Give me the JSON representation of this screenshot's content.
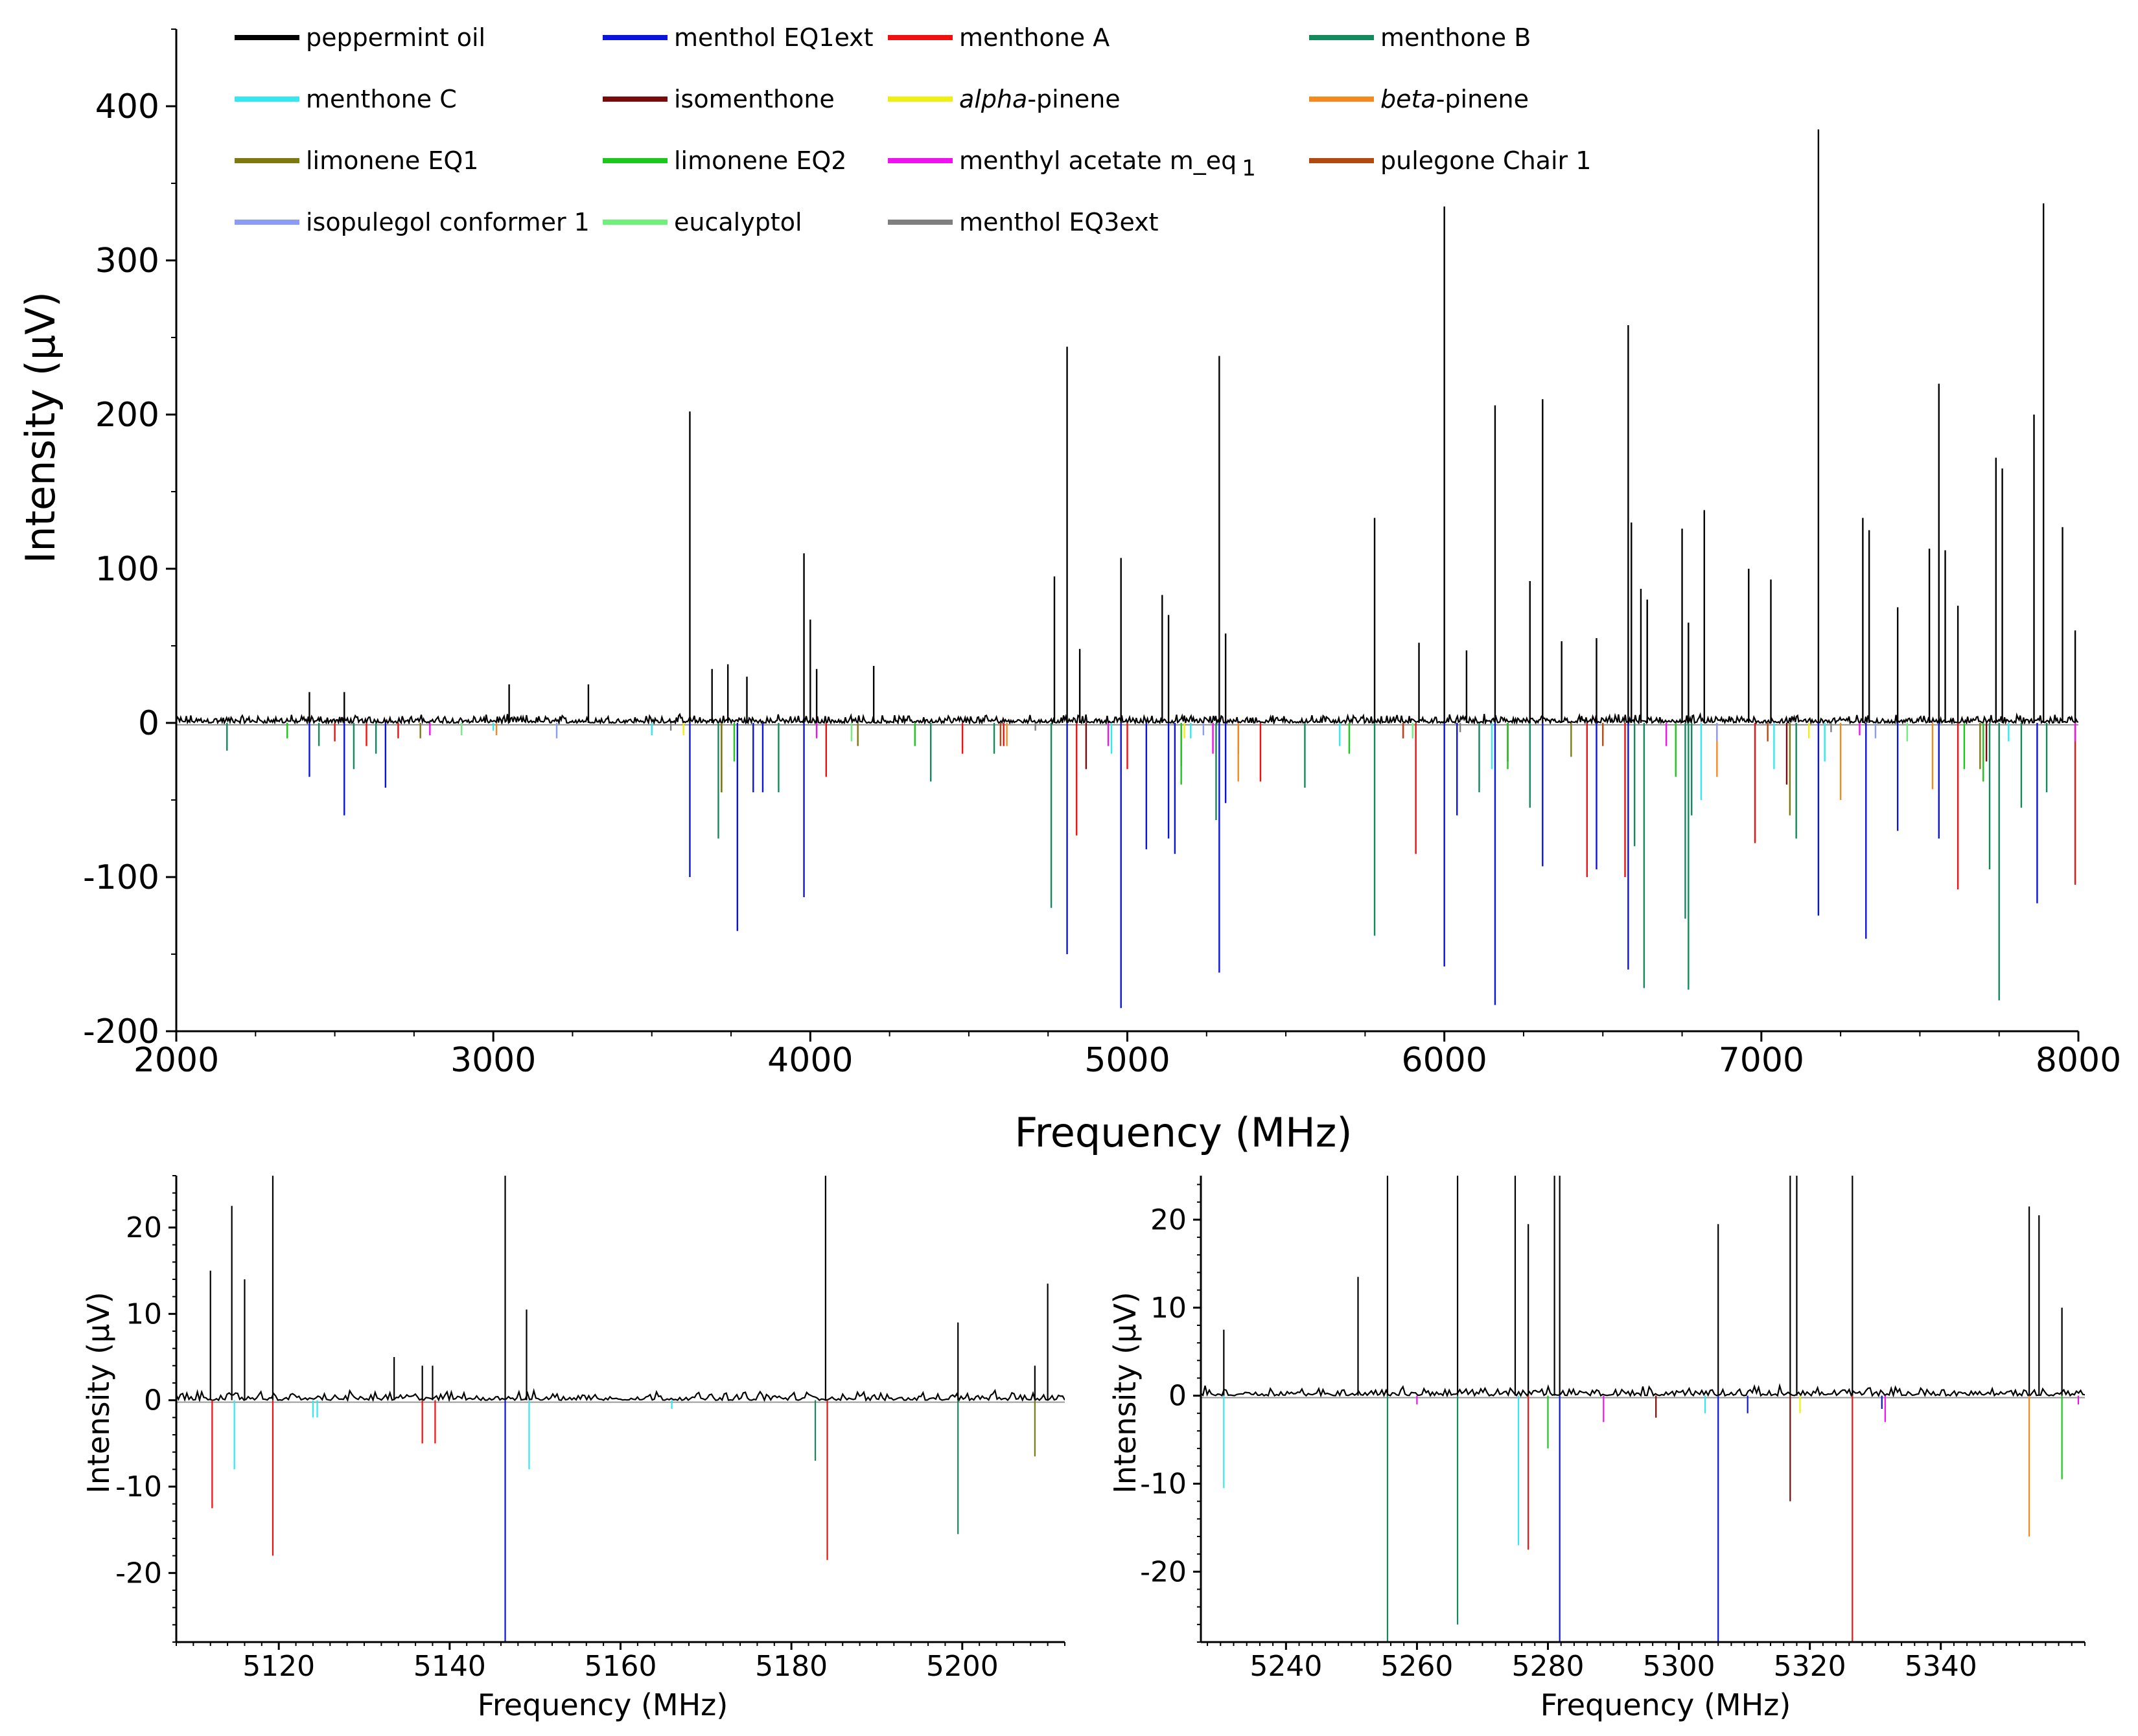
{
  "chart_data": [
    {
      "type": "line",
      "title": "",
      "xlabel": "Frequency (MHz)",
      "ylabel": "Intensity (µV)",
      "xlim": [
        2000,
        8000
      ],
      "ylim": [
        -200,
        450
      ],
      "x_ticks": [
        "2000",
        "3000",
        "4000",
        "5000",
        "6000",
        "7000",
        "8000"
      ],
      "y_ticks": [
        "400",
        "300",
        "200",
        "100",
        "0",
        "-100",
        "-200"
      ],
      "legend": [
        {
          "name": "peppermint oil",
          "color": "#000000",
          "italic_prefix": "",
          "text": "peppermint oil"
        },
        {
          "name": "menthol EQ1ext",
          "color": "#0a14dc",
          "italic_prefix": "",
          "text": "menthol EQ1ext"
        },
        {
          "name": "menthone A",
          "color": "#f01010",
          "italic_prefix": "",
          "text": "menthone A"
        },
        {
          "name": "menthone B",
          "color": "#138a5c",
          "italic_prefix": "",
          "text": "menthone B"
        },
        {
          "name": "menthone C",
          "color": "#33e8f0",
          "italic_prefix": "",
          "text": "menthone C"
        },
        {
          "name": "isomenthone",
          "color": "#7a0a0a",
          "italic_prefix": "",
          "text": "isomenthone"
        },
        {
          "name": "alpha-pinene",
          "color": "#f0f010",
          "italic_prefix": "alpha",
          "text": "-pinene"
        },
        {
          "name": "beta-pinene",
          "color": "#f7891c",
          "italic_prefix": "beta",
          "text": "-pinene"
        },
        {
          "name": "limonene EQ1",
          "color": "#7f7a10",
          "italic_prefix": "",
          "text": "limonene EQ1"
        },
        {
          "name": "limonene EQ2",
          "color": "#1cc81c",
          "italic_prefix": "",
          "text": "limonene EQ2"
        },
        {
          "name": "menthyl acetate m_eq 1",
          "color": "#f010f0",
          "italic_prefix": "",
          "text": "menthyl acetate m_eq"
        },
        {
          "name": "pulegone Chair 1",
          "color": "#b24a10",
          "italic_prefix": "",
          "text": "pulegone Chair 1"
        },
        {
          "name": "isopulegol conformer 1",
          "color": "#8a9cf5",
          "italic_prefix": "",
          "text": "isopulegol conformer 1"
        },
        {
          "name": "eucalyptol",
          "color": "#6ef07a",
          "italic_prefix": "",
          "text": "eucalyptol"
        },
        {
          "name": "menthol EQ3ext",
          "color": "#7f7f7f",
          "italic_prefix": "",
          "text": "menthol EQ3ext"
        }
      ],
      "legend_subscript": "1",
      "series": [
        {
          "name": "peppermint oil",
          "direction": "up",
          "x": [
            2420,
            2530,
            3050,
            3300,
            3620,
            3690,
            3740,
            3800,
            3980,
            4000,
            4020,
            4200,
            4770,
            4810,
            4850,
            4980,
            5110,
            5130,
            5290,
            5310,
            5780,
            5920,
            6000,
            6070,
            6160,
            6270,
            6310,
            6370,
            6480,
            6580,
            6590,
            6620,
            6640,
            6750,
            6770,
            6820,
            6960,
            7030,
            7180,
            7320,
            7340,
            7430,
            7530,
            7560,
            7580,
            7620,
            7740,
            7760,
            7860,
            7890,
            7950,
            7990
          ],
          "y": [
            20,
            20,
            25,
            25,
            202,
            35,
            38,
            30,
            110,
            67,
            35,
            37,
            95,
            244,
            48,
            107,
            83,
            70,
            238,
            58,
            133,
            52,
            335,
            47,
            206,
            92,
            210,
            53,
            55,
            258,
            130,
            87,
            80,
            126,
            65,
            138,
            100,
            93,
            385,
            133,
            125,
            75,
            113,
            220,
            112,
            76,
            172,
            165,
            200,
            337,
            127,
            60
          ]
        },
        {
          "name": "menthol EQ1ext",
          "direction": "down",
          "x": [
            2420,
            2530,
            2660,
            3620,
            3770,
            3820,
            3850,
            3980,
            4810,
            4980,
            5060,
            5130,
            5150,
            5290,
            5310,
            6000,
            6040,
            6160,
            6310,
            6480,
            6580,
            7180,
            7330,
            7430,
            7560,
            7870
          ],
          "y": [
            -35,
            -60,
            -42,
            -100,
            -135,
            -45,
            -45,
            -113,
            -150,
            -185,
            -82,
            -75,
            -85,
            -162,
            -52,
            -158,
            -60,
            -183,
            -93,
            -95,
            -160,
            -125,
            -140,
            -70,
            -75,
            -117
          ]
        },
        {
          "name": "menthone A",
          "direction": "down",
          "x": [
            2500,
            2600,
            2700,
            4050,
            4480,
            4610,
            4840,
            5000,
            5420,
            5910,
            6450,
            6570,
            6980,
            7620,
            7990
          ],
          "y": [
            -12,
            -15,
            -10,
            -35,
            -20,
            -15,
            -73,
            -30,
            -38,
            -85,
            -100,
            -100,
            -78,
            -108,
            -105
          ]
        },
        {
          "name": "menthone B",
          "direction": "down",
          "x": [
            2160,
            2450,
            2560,
            2630,
            3710,
            3900,
            4380,
            4580,
            4760,
            5280,
            5560,
            5780,
            6110,
            6270,
            6600,
            6630,
            6760,
            6770,
            6780,
            7110,
            7720,
            7750,
            7820,
            7900
          ],
          "y": [
            -18,
            -15,
            -30,
            -20,
            -75,
            -45,
            -38,
            -20,
            -120,
            -63,
            -42,
            -138,
            -45,
            -55,
            -80,
            -172,
            -127,
            -173,
            -60,
            -75,
            -95,
            -180,
            -55,
            -45
          ]
        },
        {
          "name": "menthone C",
          "direction": "down",
          "x": [
            3000,
            3500,
            4950,
            5200,
            5670,
            6150,
            6810,
            7040,
            7200,
            7780
          ],
          "y": [
            -5,
            -8,
            -20,
            -10,
            -15,
            -30,
            -50,
            -30,
            -25,
            -12
          ]
        },
        {
          "name": "isomenthone",
          "direction": "down",
          "x": [
            3720,
            4870,
            5350,
            6200,
            7080,
            7710
          ],
          "y": [
            -45,
            -30,
            -20,
            -25,
            -40,
            -25
          ]
        },
        {
          "name": "alpha-pinene",
          "direction": "down",
          "x": [
            3600,
            5180,
            6500,
            7150
          ],
          "y": [
            -8,
            -10,
            -8,
            -10
          ]
        },
        {
          "name": "beta-pinene",
          "direction": "down",
          "x": [
            3010,
            4620,
            5350,
            6860,
            7250,
            7540
          ],
          "y": [
            -8,
            -15,
            -38,
            -35,
            -50,
            -43
          ]
        },
        {
          "name": "limonene EQ1",
          "direction": "down",
          "x": [
            2770,
            3720,
            4150,
            5170,
            6400,
            7090,
            7690
          ],
          "y": [
            -10,
            -45,
            -15,
            -28,
            -22,
            -60,
            -30
          ]
        },
        {
          "name": "limonene EQ2",
          "direction": "down",
          "x": [
            2350,
            3760,
            4330,
            5170,
            5700,
            6200,
            6730,
            7640,
            7700
          ],
          "y": [
            -10,
            -25,
            -15,
            -40,
            -20,
            -30,
            -35,
            -30,
            -38
          ]
        },
        {
          "name": "menthyl acetate m_eq 1",
          "direction": "down",
          "x": [
            2800,
            4020,
            4940,
            5270,
            5870,
            6700,
            7310,
            7990
          ],
          "y": [
            -8,
            -10,
            -15,
            -20,
            -10,
            -15,
            -8,
            -12
          ]
        },
        {
          "name": "pulegone Chair 1",
          "direction": "down",
          "x": [
            4600,
            5870,
            6500,
            7020
          ],
          "y": [
            -15,
            -10,
            -15,
            -12
          ]
        },
        {
          "name": "isopulegol conformer 1",
          "direction": "down",
          "x": [
            3200,
            5240,
            6860,
            7360
          ],
          "y": [
            -10,
            -8,
            -12,
            -10
          ]
        },
        {
          "name": "eucalyptol",
          "direction": "down",
          "x": [
            2900,
            4130,
            5900,
            7460
          ],
          "y": [
            -8,
            -12,
            -10,
            -12
          ]
        },
        {
          "name": "menthol EQ3ext",
          "direction": "down",
          "x": [
            3560,
            4710,
            6050,
            7220
          ],
          "y": [
            -5,
            -5,
            -6,
            -6
          ]
        }
      ]
    },
    {
      "type": "line",
      "title": "",
      "xlabel": "Frequency (MHz)",
      "ylabel": "Intensity (µV)",
      "xlim": [
        5108,
        5212
      ],
      "ylim": [
        -28,
        26
      ],
      "x_ticks": [
        "5120",
        "5140",
        "5160",
        "5180",
        "5200"
      ],
      "y_ticks": [
        "20",
        "10",
        "0",
        "-10",
        "-20"
      ],
      "series": [
        {
          "name": "peppermint oil",
          "direction": "up",
          "x": [
            5112,
            5114.5,
            5116,
            5119.3,
            5133.5,
            5136.8,
            5138,
            5146.5,
            5149,
            5184,
            5199.5,
            5208.5,
            5210
          ],
          "y": [
            15,
            22.5,
            14,
            26,
            5,
            4,
            4,
            26,
            10.5,
            26,
            9,
            4,
            13.5
          ]
        },
        {
          "name": "menthone A",
          "direction": "down",
          "x": [
            5112.2,
            5119.3,
            5136.8,
            5138.3,
            5184.2
          ],
          "y": [
            -12.5,
            -18,
            -5,
            -5,
            -18.5
          ]
        },
        {
          "name": "menthone C",
          "direction": "down",
          "x": [
            5114.8,
            5124,
            5124.5,
            5149.3,
            5166
          ],
          "y": [
            -8,
            -2,
            -2,
            -8,
            -1
          ]
        },
        {
          "name": "menthol EQ1ext",
          "direction": "down",
          "x": [
            5146.5
          ],
          "y": [
            -28
          ]
        },
        {
          "name": "menthone B",
          "direction": "down",
          "x": [
            5182.8,
            5199.5
          ],
          "y": [
            -7,
            -15.5
          ]
        },
        {
          "name": "limonene EQ1",
          "direction": "down",
          "x": [
            5208.5
          ],
          "y": [
            -6.5
          ]
        }
      ]
    },
    {
      "type": "line",
      "title": "",
      "xlabel": "Frequency (MHz)",
      "ylabel": "Intensity (µV)",
      "xlim": [
        5227,
        5362
      ],
      "ylim": [
        -28,
        25
      ],
      "x_ticks": [
        "5240",
        "5260",
        "5280",
        "5300",
        "5320",
        "5340"
      ],
      "y_ticks": [
        "20",
        "10",
        "0",
        "-10",
        "-20"
      ],
      "series": [
        {
          "name": "peppermint oil",
          "direction": "up",
          "x": [
            5230.5,
            5251,
            5255.5,
            5266.2,
            5275,
            5277,
            5281,
            5281.8,
            5306,
            5317,
            5318,
            5326.5,
            5353.5,
            5355,
            5358.5
          ],
          "y": [
            7.5,
            13.5,
            25,
            25,
            25,
            19.5,
            25,
            25,
            19.5,
            25,
            25,
            25,
            21.5,
            20.5,
            10
          ]
        },
        {
          "name": "menthone C",
          "direction": "down",
          "x": [
            5230.5,
            5275.5,
            5304
          ],
          "y": [
            -10.5,
            -17,
            -2
          ]
        },
        {
          "name": "menthone B",
          "direction": "down",
          "x": [
            5255.5,
            5266.2
          ],
          "y": [
            -28,
            -26
          ]
        },
        {
          "name": "menthone A",
          "direction": "down",
          "x": [
            5277,
            5326.5
          ],
          "y": [
            -17.5,
            -28
          ]
        },
        {
          "name": "limonene EQ2",
          "direction": "down",
          "x": [
            5280,
            5358.5
          ],
          "y": [
            -6,
            -9.5
          ]
        },
        {
          "name": "menthol EQ1ext",
          "direction": "down",
          "x": [
            5281.8,
            5306,
            5310.5,
            5331
          ],
          "y": [
            -28,
            -28,
            -2,
            -1.5
          ]
        },
        {
          "name": "isomenthone",
          "direction": "down",
          "x": [
            5296.5,
            5317
          ],
          "y": [
            -2.5,
            -12
          ]
        },
        {
          "name": "beta-pinene",
          "direction": "down",
          "x": [
            5353.5
          ],
          "y": [
            -16
          ]
        },
        {
          "name": "menthyl acetate m_eq 1",
          "direction": "down",
          "x": [
            5260,
            5288.5,
            5331.5,
            5361
          ],
          "y": [
            -1,
            -3,
            -3,
            -1
          ]
        },
        {
          "name": "alpha-pinene",
          "direction": "down",
          "x": [
            5318.5
          ],
          "y": [
            -2
          ]
        }
      ]
    }
  ]
}
